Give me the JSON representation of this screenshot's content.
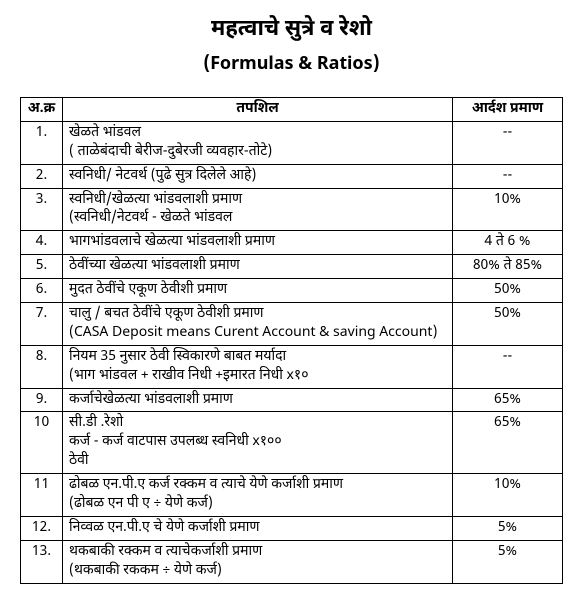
{
  "title": "महत्वाचे सुत्रे व रेशो",
  "subtitle": "(Formulas & Ratios)",
  "table": {
    "headers": {
      "index": "अ.क्र",
      "detail": "तपशिल",
      "standard": "आर्दश प्रमाण"
    },
    "rows": [
      {
        "index": "1.",
        "detail": "खेळते भांडवल\n( ताळेबंदाची बेरीज-दुबेरजी व्यवहार-तोटे)",
        "standard": "--"
      },
      {
        "index": "2.",
        "detail": "स्वनिधी/ नेटवर्थ  (पुढे सुत्र दिलेले आहे)",
        "standard": "--"
      },
      {
        "index": "3.",
        "detail": "स्वनिधी/खेळत्या भांडवलाशी प्रमाण\n(स्वनिधी/नेटवर्थ - खेळते भांडवल",
        "standard": "10%"
      },
      {
        "index": "4.",
        "detail": "भागभांडवलाचे खेळत्या भांडवलाशी प्रमाण",
        "standard": "4 ते 6 %"
      },
      {
        "index": "5.",
        "detail": "ठेवींच्या खेळत्या भांडवलाशी प्रमाण",
        "standard": "80% ते 85%"
      },
      {
        "index": "6.",
        "detail": "मुदत ठेवींचे एकूण ठेवीशी प्रमाण",
        "standard": "50%"
      },
      {
        "index": "7.",
        "detail": "चालु / बचत ठेवींचे एकूण ठेवीशी प्रमाण\n(CASA Deposit means Curent Account & saving Account)",
        "standard": "50%"
      },
      {
        "index": "8.",
        "detail": "नियम 35 नुसार ठेवी स्विकारणे बाबत मर्यादा\n(भाग भांडवल + राखीव निधी +इमारत निधी x१०",
        "standard": "--"
      },
      {
        "index": "9.",
        "detail": "कर्जाचेखेळत्या भांडवलाशी प्रमाण",
        "standard": "65%"
      },
      {
        "index": "10",
        "detail": "सी.डी .रेशो\nकर्ज - कर्ज वाटपास उपलब्ध स्वनिधी x१००\n            ठेवी",
        "standard": "65%"
      },
      {
        "index": "11",
        "detail": "ढोबळ एन.पी.ए कर्ज रक्कम व त्याचे येणे कर्जाशी प्रमाण\n(ढोबळ एन पी ए ÷ येणे कर्ज)",
        "standard": "10%"
      },
      {
        "index": "12.",
        "detail": "निव्वळ एन.पी.ए चे येणे कर्जाशी प्रमाण",
        "standard": "5%"
      },
      {
        "index": "13.",
        "detail": "थकबाकी रक्कम व त्याचेकर्जाशी प्रमाण\n(थकबाकी रककम ÷ येणे कर्ज)",
        "standard": "5%"
      }
    ]
  }
}
